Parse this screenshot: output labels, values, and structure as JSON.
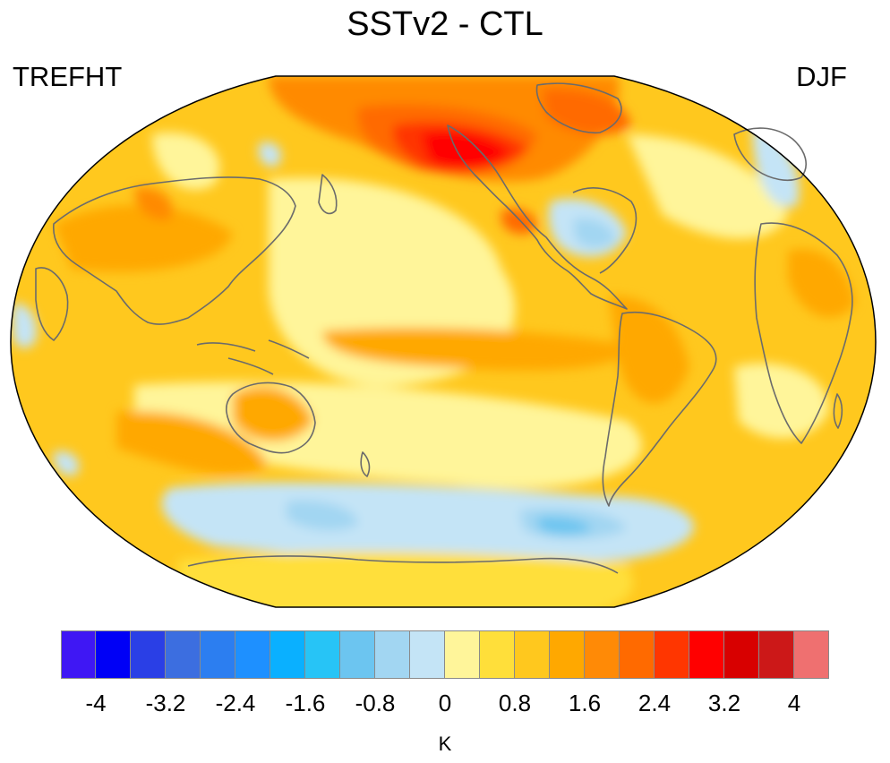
{
  "title": "SSTv2 - CTL",
  "variable": "TREFHT",
  "season": "DJF",
  "colorbar": {
    "unit": "K",
    "ticks": [
      "-4",
      "-3.2",
      "-2.4",
      "-1.6",
      "-0.8",
      "0",
      "0.8",
      "1.6",
      "2.4",
      "3.2",
      "4"
    ],
    "colors": [
      "#3f17f4",
      "#0000f6",
      "#2a3fe6",
      "#3c6ee0",
      "#2c7ef0",
      "#1e90ff",
      "#0ab0ff",
      "#27c4f6",
      "#6cc5f0",
      "#a2d6f2",
      "#c4e4f6",
      "#fff59a",
      "#ffdf3a",
      "#ffc81e",
      "#ffa800",
      "#ff8a06",
      "#ff6a00",
      "#ff3600",
      "#ff0000",
      "#d80000",
      "#cc1818",
      "#ef7070"
    ]
  }
}
